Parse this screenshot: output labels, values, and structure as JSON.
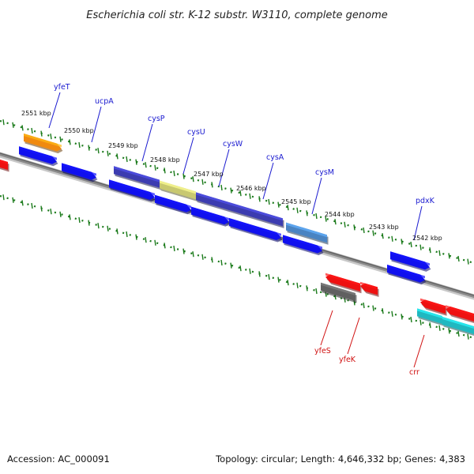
{
  "title": "Escherichia coli str. K-12 substr. W3110, complete genome",
  "footer": {
    "accession": "Accession: AC_000091",
    "topology": "Topology: circular; Length: 4,646,332 bp; Genes: 4,383"
  },
  "colors": {
    "forward_cds": "#1010ee",
    "reverse_cds": "#ee1111",
    "label_forward": "#1a1ad0",
    "label_reverse": "#d01010",
    "tick": "#1a7a1a",
    "backbone": "#8a8a8a"
  },
  "ticks": [
    "2551 kbp",
    "2550 kbp",
    "2549 kbp",
    "2548 kbp",
    "2547 kbp",
    "2546 kbp",
    "2545 kbp",
    "2544 kbp",
    "2543 kbp",
    "2542 kbp"
  ],
  "gene_labels": [
    {
      "name": "yfeT",
      "strand": "forward"
    },
    {
      "name": "ucpA",
      "strand": "forward"
    },
    {
      "name": "cysP",
      "strand": "forward"
    },
    {
      "name": "cysU",
      "strand": "forward"
    },
    {
      "name": "cysW",
      "strand": "forward"
    },
    {
      "name": "cysA",
      "strand": "forward"
    },
    {
      "name": "cysM",
      "strand": "forward"
    },
    {
      "name": "pdxK",
      "strand": "forward"
    },
    {
      "name": "yfeS",
      "strand": "reverse"
    },
    {
      "name": "yfeK",
      "strand": "reverse"
    },
    {
      "name": "crr",
      "strand": "reverse"
    }
  ]
}
